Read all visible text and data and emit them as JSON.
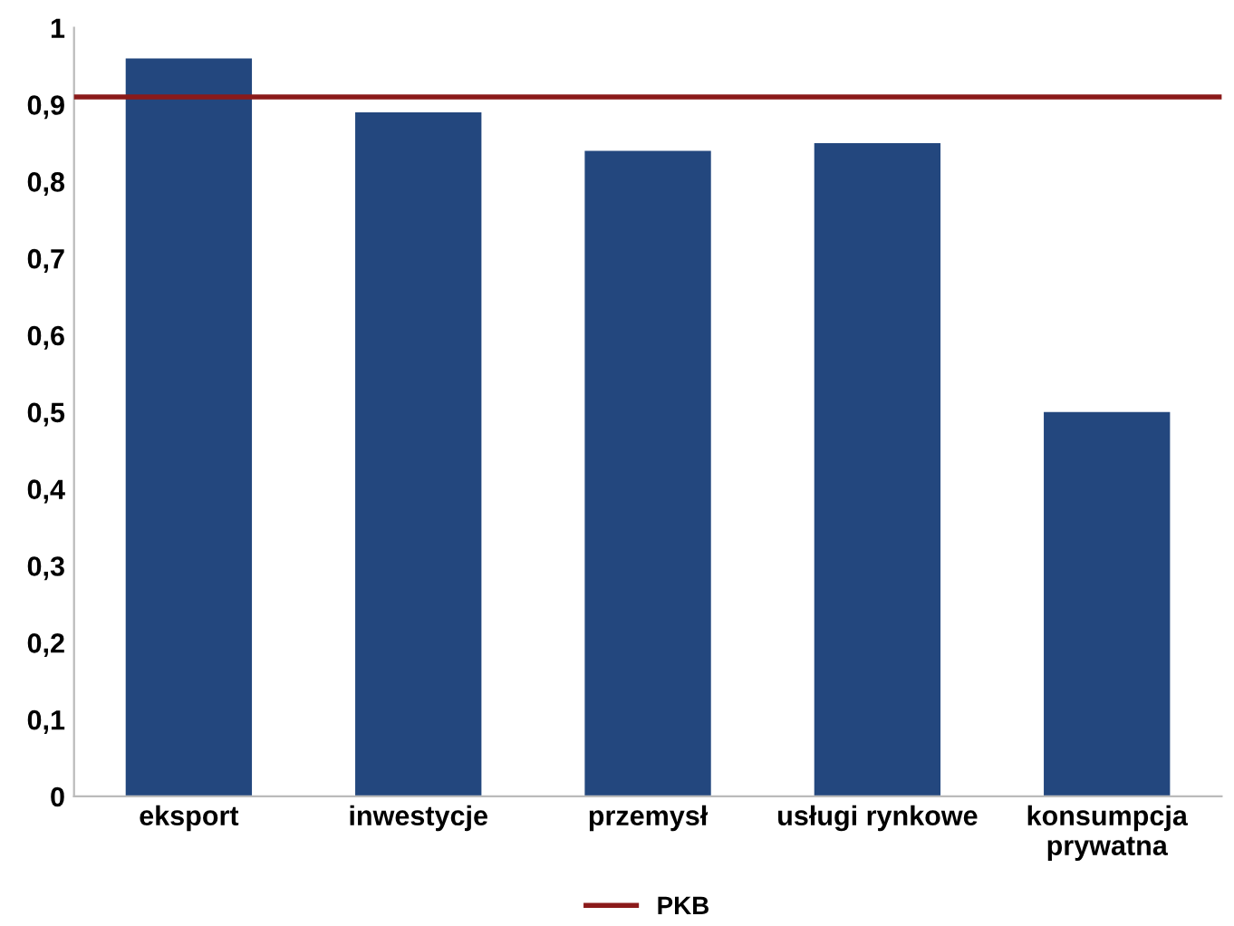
{
  "chart_data": {
    "type": "bar",
    "categories": [
      "eksport",
      "inwestycje",
      "przemysł",
      "usługi rynkowe",
      "konsumpcja\nprywatna"
    ],
    "values": [
      0.96,
      0.89,
      0.84,
      0.85,
      0.5
    ],
    "color": "#23477e",
    "ylim": [
      0,
      1
    ],
    "yticks": [
      0,
      {
        "value": 0.1,
        "label": "0,1"
      },
      {
        "value": 0.2,
        "label": "0,2"
      },
      {
        "value": 0.3,
        "label": "0,3"
      },
      {
        "value": 0.4,
        "label": "0,4"
      },
      {
        "value": 0.5,
        "label": "0,5"
      },
      {
        "value": 0.6,
        "label": "0,6"
      },
      {
        "value": 0.7,
        "label": "0,7"
      },
      {
        "value": 0.8,
        "label": "0,8"
      },
      {
        "value": 0.9,
        "label": "0,9"
      },
      1
    ],
    "ref_lines": [
      {
        "axis": "y",
        "value": 0.91,
        "label": "PKB",
        "color": "#8b1a1a"
      }
    ],
    "legend": "bottom",
    "grid": false
  }
}
